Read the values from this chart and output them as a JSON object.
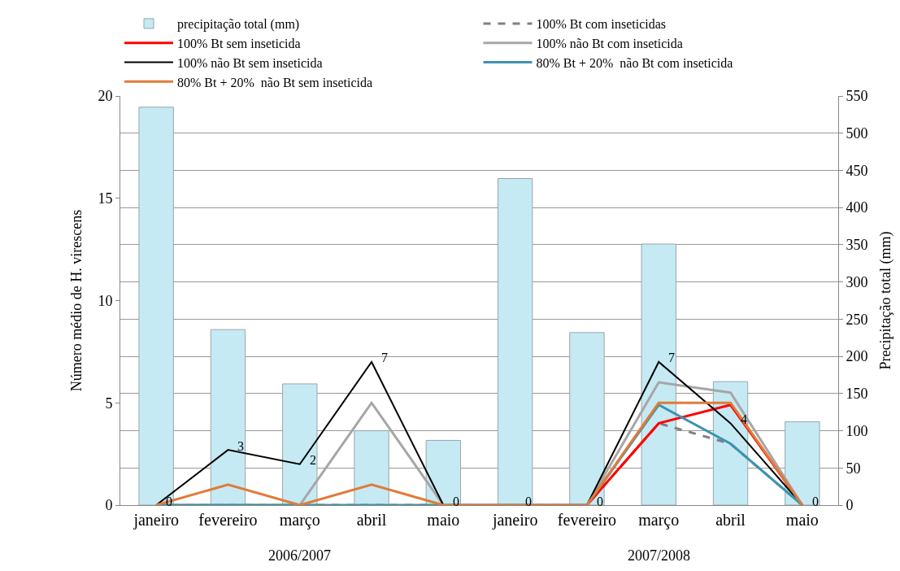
{
  "chart_data": {
    "type": "line",
    "ylabel": "Número médio de H. virescens",
    "y2label": "Precipitação total (mm)",
    "categories": [
      "janeiro",
      "fevereiro",
      "março",
      "abril",
      "maio",
      "janeiro",
      "fevereiro",
      "março",
      "abril",
      "maio"
    ],
    "annotations": [
      "2006/2007",
      "2007/2008"
    ],
    "ylim": [
      0,
      20
    ],
    "yticks": [
      0,
      5,
      10,
      15,
      20
    ],
    "y2lim": [
      0,
      550
    ],
    "y2ticks": [
      0,
      50,
      100,
      150,
      200,
      250,
      300,
      350,
      400,
      450,
      500,
      550
    ],
    "grid": "y2",
    "legend": "top",
    "marker": "none",
    "series": [
      {
        "name": "precipitação total (mm)",
        "type": "bar",
        "axis": "y2",
        "color": "#c5eaf3",
        "values": [
          535,
          236,
          163,
          100,
          87,
          439,
          232,
          351,
          166,
          112
        ]
      },
      {
        "name": "100% Bt com inseticidas",
        "color": "#808080",
        "line_style": "dashed",
        "values": [
          0,
          0,
          0,
          0,
          0,
          0,
          0,
          4,
          3,
          0
        ]
      },
      {
        "name": "100% Bt sem inseticida",
        "color": "#ff0000",
        "values": [
          null,
          null,
          null,
          null,
          null,
          null,
          0,
          4,
          4.9,
          0
        ]
      },
      {
        "name": "100% não Bt com inseticida",
        "color": "#a6a6a6",
        "values": [
          0,
          0,
          0,
          5,
          0,
          0,
          0,
          6,
          5.5,
          0
        ]
      },
      {
        "name": "100% não Bt sem inseticida",
        "color": "#000000",
        "values": [
          0,
          2.7,
          2,
          7,
          0,
          0,
          0,
          7,
          4,
          0
        ],
        "value_labels": [
          "0",
          "3",
          "2",
          "7",
          "0",
          "0",
          "0",
          "7",
          "4",
          "0"
        ]
      },
      {
        "name": "80% Bt + 20%  não Bt com inseticida",
        "color": "#3b94b0",
        "values": [
          0,
          0,
          0,
          0,
          0,
          0,
          0,
          4.9,
          3,
          0
        ]
      },
      {
        "name": "80% Bt + 20%  não Bt sem inseticida",
        "color": "#e07b39",
        "values": [
          0,
          1,
          0,
          1,
          0,
          0,
          0,
          5,
          5,
          0
        ]
      }
    ]
  }
}
